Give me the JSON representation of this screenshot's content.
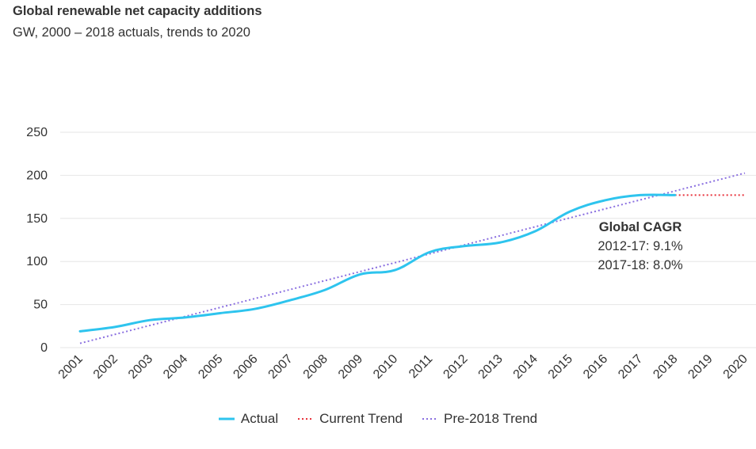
{
  "title": "Global renewable net capacity additions",
  "subtitle": "GW, 2000 – 2018 actuals, trends to 2020",
  "annotation": {
    "heading": "Global CAGR",
    "line1": "2012-17: 9.1%",
    "line2": "2017-18: 8.0%"
  },
  "legend": {
    "actual": "Actual",
    "current_trend": "Current Trend",
    "pre_trend": "Pre-2018 Trend"
  },
  "colors": {
    "actual": "#2ec4ee",
    "current_trend": "#e8333c",
    "pre_trend": "#8a6fe0",
    "grid": "#e6e6e6"
  },
  "chart_data": {
    "type": "line",
    "categories": [
      "2001",
      "2002",
      "2003",
      "2004",
      "2005",
      "2006",
      "2007",
      "2008",
      "2009",
      "2010",
      "2011",
      "2012",
      "2013",
      "2014",
      "2015",
      "2016",
      "2017",
      "2018",
      "2019",
      "2020"
    ],
    "y_ticks": [
      0,
      50,
      100,
      150,
      200,
      250
    ],
    "ylim": [
      0,
      250
    ],
    "grid": true,
    "legend_position": "bottom",
    "series": [
      {
        "name": "Actual",
        "style": "solid",
        "values": [
          19,
          24,
          32,
          35,
          40,
          45,
          55,
          67,
          85,
          90,
          111,
          118,
          122,
          135,
          158,
          171,
          177,
          177,
          null,
          null
        ]
      },
      {
        "name": "Current Trend",
        "style": "dotted",
        "values": [
          null,
          null,
          null,
          null,
          null,
          null,
          null,
          null,
          null,
          null,
          null,
          null,
          null,
          null,
          null,
          null,
          null,
          177,
          177,
          177
        ]
      },
      {
        "name": "Pre-2018 Trend",
        "style": "dotted",
        "values": [
          5,
          15.4,
          25.8,
          36.2,
          46.6,
          57,
          67.4,
          77.8,
          88.2,
          98.6,
          109,
          119.4,
          129.8,
          140.2,
          150.6,
          161,
          171.4,
          181.8,
          192.2,
          202.6
        ]
      }
    ]
  }
}
